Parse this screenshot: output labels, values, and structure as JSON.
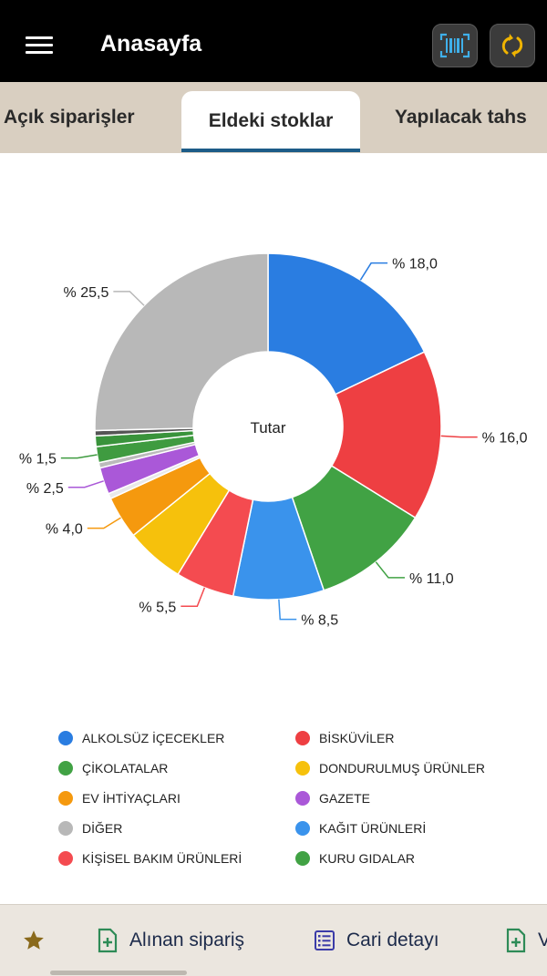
{
  "header": {
    "title": "Anasayfa",
    "accent": "#f0b400",
    "barcode_color": "#3fb0ea"
  },
  "tabs": [
    {
      "label": "Açık siparişler"
    },
    {
      "label": "Eldeki stoklar",
      "active": true
    },
    {
      "label": "Yapılacak tahs"
    }
  ],
  "chart_data": {
    "type": "pie",
    "center_label": "Tutar",
    "slices": [
      {
        "name": "ALKOLSÜZ İÇECEKLER",
        "value": 18.0,
        "label": "% 18,0",
        "color": "#2a7de1"
      },
      {
        "name": "BİSKÜVİLER",
        "value": 16.0,
        "label": "% 16,0",
        "color": "#ee3f42"
      },
      {
        "name": "ÇİKOLATALAR",
        "value": 11.0,
        "label": "% 11,0",
        "color": "#41a244"
      },
      {
        "name": "KAĞIT ÜRÜNLERİ",
        "value": 8.5,
        "label": "% 8,5",
        "color": "#3a93ec"
      },
      {
        "name": "KİŞİSEL BAKIM ÜRÜNLERİ",
        "value": 5.5,
        "label": "% 5,5",
        "color": "#f44b50"
      },
      {
        "name": "DONDURULMUŞ ÜRÜNLER",
        "value": 5.5,
        "label": "",
        "color": "#f6c10c"
      },
      {
        "name": "EV İHTİYAÇLARI",
        "value": 4.0,
        "label": "% 4,0",
        "color": "#f5990e"
      },
      {
        "name": "—",
        "value": 0.5,
        "label": "",
        "color": "#e9e9e9"
      },
      {
        "name": "GAZETE",
        "value": 2.5,
        "label": "% 2,5",
        "color": "#aa58d8"
      },
      {
        "name": "—",
        "value": 0.5,
        "label": "",
        "color": "#bbbbbb"
      },
      {
        "name": "KURU GIDALAR",
        "value": 1.5,
        "label": "% 1,5",
        "color": "#3f9b40"
      },
      {
        "name": "—",
        "value": 1.0,
        "label": "",
        "color": "#39933b"
      },
      {
        "name": "—",
        "value": 0.5,
        "label": "",
        "color": "#555555"
      },
      {
        "name": "DİĞER",
        "value": 25.5,
        "label": "% 25,5",
        "color": "#b8b8b8"
      }
    ],
    "legend": [
      {
        "name": "ALKOLSÜZ İÇECEKLER",
        "color": "#2a7de1"
      },
      {
        "name": "BİSKÜVİLER",
        "color": "#ee3f42"
      },
      {
        "name": "ÇİKOLATALAR",
        "color": "#41a244"
      },
      {
        "name": "DONDURULMUŞ ÜRÜNLER",
        "color": "#f6c10c"
      },
      {
        "name": "EV İHTİYAÇLARI",
        "color": "#f5990e"
      },
      {
        "name": "GAZETE",
        "color": "#aa58d8"
      },
      {
        "name": "DİĞER",
        "color": "#b8b8b8"
      },
      {
        "name": "KAĞIT ÜRÜNLERİ",
        "color": "#3a93ec"
      },
      {
        "name": "KİŞİSEL BAKIM ÜRÜNLERİ",
        "color": "#f44b50"
      },
      {
        "name": "KURU GIDALAR",
        "color": "#41a244"
      }
    ]
  },
  "bottom_nav": {
    "items": [
      {
        "label": "",
        "icon": "star-icon",
        "color": "#8a6a1c"
      },
      {
        "label": "Alınan sipariş",
        "icon": "add-document-icon",
        "color": "#2e8b57"
      },
      {
        "label": "Cari detayı",
        "icon": "list-icon",
        "color": "#3b3ba8"
      },
      {
        "label": "V",
        "icon": "add-document-icon",
        "color": "#2e8b57"
      }
    ]
  }
}
